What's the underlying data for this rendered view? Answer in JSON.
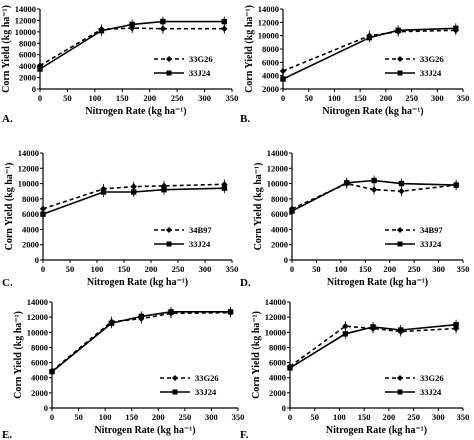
{
  "chart_data": [
    {
      "type": "line",
      "panel_label": "A.",
      "xlabel": "Nitrogen Rate (kg ha⁻¹)",
      "ylabel": "Corn Yield (kg ha⁻¹)",
      "xlim": [
        0,
        350
      ],
      "ylim": [
        0,
        14000
      ],
      "xticks": [
        0,
        50,
        100,
        150,
        200,
        250,
        300,
        350
      ],
      "yticks": [
        0,
        2000,
        4000,
        6000,
        8000,
        10000,
        12000,
        14000
      ],
      "series": [
        {
          "name": "33G26",
          "style": "dashed",
          "marker": "diamond",
          "x": [
            0,
            112,
            168,
            224,
            336
          ],
          "y": [
            4100,
            10450,
            10650,
            10550,
            10550
          ]
        },
        {
          "name": "33J24",
          "style": "solid",
          "marker": "square",
          "x": [
            0,
            112,
            168,
            224,
            336
          ],
          "y": [
            3500,
            10200,
            11300,
            11800,
            11800
          ]
        }
      ]
    },
    {
      "type": "line",
      "panel_label": "B.",
      "xlabel": "Nitrogen Rate (kg ha⁻¹)",
      "ylabel": "Corn Yield (kg ha⁻¹)",
      "xlim": [
        0,
        350
      ],
      "ylim": [
        2000,
        14000
      ],
      "xticks": [
        0,
        50,
        100,
        150,
        200,
        250,
        300,
        350
      ],
      "yticks": [
        2000,
        4000,
        6000,
        8000,
        10000,
        12000,
        14000
      ],
      "series": [
        {
          "name": "33G26",
          "style": "dashed",
          "marker": "diamond",
          "x": [
            0,
            168,
            224,
            336
          ],
          "y": [
            4700,
            10000,
            10600,
            10800
          ]
        },
        {
          "name": "33J24",
          "style": "solid",
          "marker": "square",
          "x": [
            0,
            168,
            224,
            336
          ],
          "y": [
            3500,
            9700,
            10800,
            11100
          ]
        }
      ]
    },
    {
      "type": "line",
      "panel_label": "C.",
      "xlabel": "Nitrogen Rate (kg ha⁻¹)",
      "ylabel": "Corn Yield (kg ha⁻¹)",
      "xlim": [
        0,
        350
      ],
      "ylim": [
        0,
        14000
      ],
      "xticks": [
        0,
        50,
        100,
        150,
        200,
        250,
        300,
        350
      ],
      "yticks": [
        0,
        2000,
        4000,
        6000,
        8000,
        10000,
        12000,
        14000
      ],
      "series": [
        {
          "name": "34B97",
          "style": "dashed",
          "marker": "diamond",
          "x": [
            0,
            112,
            168,
            224,
            336
          ],
          "y": [
            6700,
            9300,
            9600,
            9700,
            9900
          ]
        },
        {
          "name": "33J24",
          "style": "solid",
          "marker": "square",
          "x": [
            0,
            112,
            168,
            224,
            336
          ],
          "y": [
            6000,
            8900,
            8900,
            9200,
            9400
          ]
        }
      ]
    },
    {
      "type": "line",
      "panel_label": "D.",
      "xlabel": "Nitrogen Rate (kg ha⁻¹)",
      "ylabel": "Corn Yield (kg ha⁻¹)",
      "xlim": [
        0,
        350
      ],
      "ylim": [
        0,
        14000
      ],
      "xticks": [
        0,
        50,
        100,
        150,
        200,
        250,
        300,
        350
      ],
      "yticks": [
        0,
        2000,
        4000,
        6000,
        8000,
        10000,
        12000,
        14000
      ],
      "series": [
        {
          "name": "34B97",
          "style": "dashed",
          "marker": "diamond",
          "x": [
            0,
            112,
            168,
            224,
            336
          ],
          "y": [
            6700,
            10000,
            9200,
            9000,
            9800
          ]
        },
        {
          "name": "33J24",
          "style": "solid",
          "marker": "square",
          "x": [
            0,
            112,
            168,
            224,
            336
          ],
          "y": [
            6400,
            10100,
            10400,
            10000,
            9800
          ]
        }
      ]
    },
    {
      "type": "line",
      "panel_label": "E.",
      "xlabel": "Nitrogen Rate (kg ha⁻¹)",
      "ylabel": "Corn Yield (kg ha⁻¹)",
      "xlim": [
        0,
        350
      ],
      "ylim": [
        0,
        14000
      ],
      "xticks": [
        0,
        50,
        100,
        150,
        200,
        250,
        300,
        350
      ],
      "yticks": [
        0,
        2000,
        4000,
        6000,
        8000,
        10000,
        12000,
        14000
      ],
      "series": [
        {
          "name": "33G26",
          "style": "dashed",
          "marker": "diamond",
          "x": [
            0,
            112,
            168,
            224,
            336
          ],
          "y": [
            4900,
            11400,
            11800,
            12500,
            12600
          ]
        },
        {
          "name": "33J24",
          "style": "solid",
          "marker": "square",
          "x": [
            0,
            112,
            168,
            224,
            336
          ],
          "y": [
            4800,
            11200,
            12100,
            12700,
            12700
          ]
        }
      ]
    },
    {
      "type": "line",
      "panel_label": "F.",
      "xlabel": "Nitrogen Rate (kg ha⁻¹)",
      "ylabel": "Corn Yield (kg ha⁻¹)",
      "xlim": [
        0,
        350
      ],
      "ylim": [
        0,
        14000
      ],
      "xticks": [
        0,
        50,
        100,
        150,
        200,
        250,
        300,
        350
      ],
      "yticks": [
        0,
        2000,
        4000,
        6000,
        8000,
        10000,
        12000,
        14000
      ],
      "series": [
        {
          "name": "33G26",
          "style": "dashed",
          "marker": "diamond",
          "x": [
            0,
            112,
            168,
            224,
            336
          ],
          "y": [
            5500,
            10800,
            10500,
            10100,
            10500
          ]
        },
        {
          "name": "33J24",
          "style": "solid",
          "marker": "square",
          "x": [
            0,
            112,
            168,
            224,
            336
          ],
          "y": [
            5300,
            9800,
            10700,
            10300,
            11000
          ]
        }
      ]
    }
  ]
}
